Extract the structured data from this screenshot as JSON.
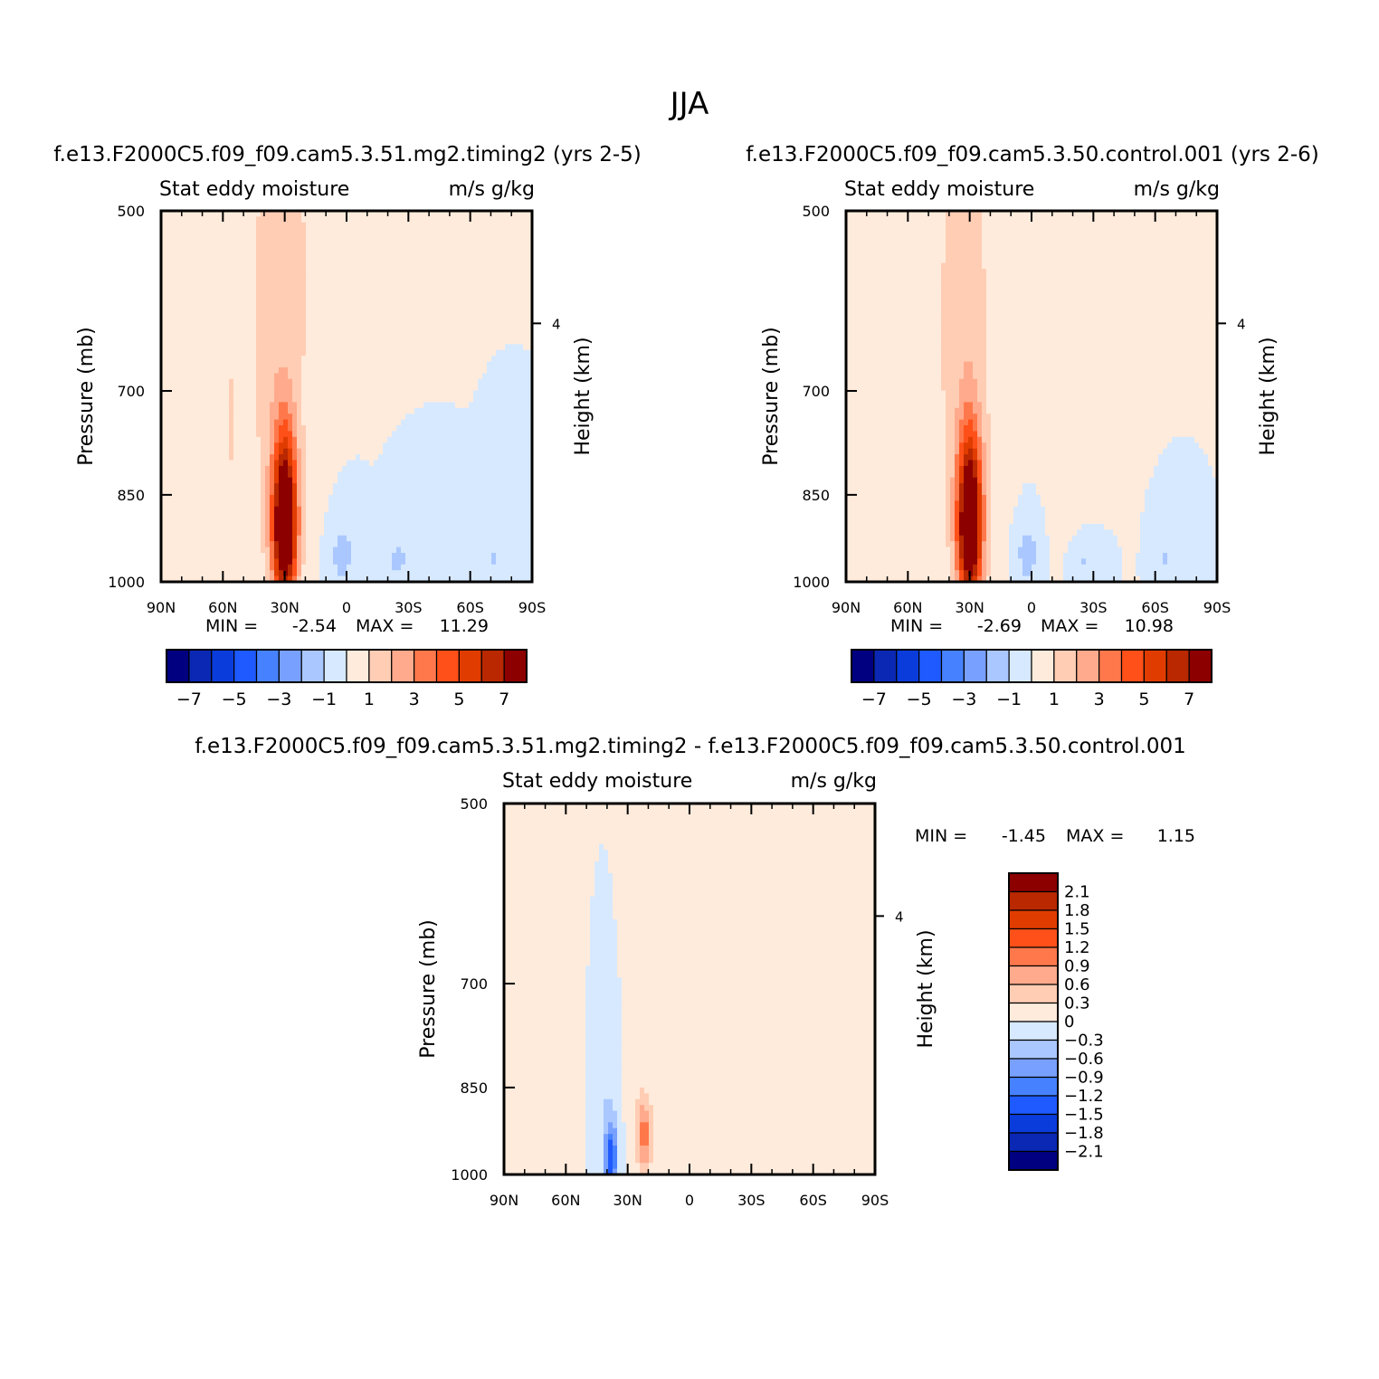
{
  "title": "JJA",
  "colors": {
    "panel_scale": [
      "#000080",
      "#0a28b4",
      "#0a3cdc",
      "#1e5aff",
      "#4682ff",
      "#78a0ff",
      "#aac8ff",
      "#d7e9ff",
      "#ffebdc",
      "#ffcdb4",
      "#ffaa8c",
      "#ff784b",
      "#ff5019",
      "#e13c00",
      "#b92800",
      "#8c0000"
    ],
    "diff_scale": [
      "#000080",
      "#0a28b4",
      "#0a3cdc",
      "#1e5aff",
      "#4682ff",
      "#78a0ff",
      "#aac8ff",
      "#d7e9ff",
      "#ffebdc",
      "#ffcdb4",
      "#ffaa8c",
      "#ff784b",
      "#ff5019",
      "#e13c00",
      "#b92800",
      "#8c0000"
    ]
  },
  "chart_data": [
    {
      "type": "contour",
      "header": "f.e13.F2000C5.f09_f09.cam5.3.51.mg2.timing2 (yrs 2-5)",
      "label_left": "Stat eddy moisture",
      "label_right": "m/s g/kg",
      "xlabel": "",
      "ylabel": "Pressure (mb)",
      "ylabel_right": "Height (km)",
      "x_ticks": [
        "90N",
        "60N",
        "30N",
        "0",
        "30S",
        "60S",
        "90S"
      ],
      "x_range": [
        90,
        -90
      ],
      "y_ticks": [
        "500",
        "700",
        "850",
        "1000"
      ],
      "y_range": [
        500,
        1000
      ],
      "y_log": true,
      "y_right_ticks": [
        "4"
      ],
      "min_label": "MIN =",
      "min_value": "-2.54",
      "max_label": "MAX =",
      "max_value": "11.29",
      "colorbar_labels": [
        "-7",
        "-5",
        "-3",
        "-1",
        "1",
        "3",
        "5",
        "7"
      ],
      "features": [
        {
          "lat": 35,
          "lev": 620,
          "half_lat": 14,
          "half_lev": 380,
          "amp": 1.5
        },
        {
          "lat": 30,
          "lev": 900,
          "half_lat": 6,
          "half_lev": 140,
          "amp": 10.0
        },
        {
          "lat": 56,
          "lev": 750,
          "half_lat": 3,
          "half_lev": 260,
          "amp": 0.9
        },
        {
          "lat": 18,
          "lev": 560,
          "half_lat": 8,
          "half_lev": 200,
          "amp": 0.6
        },
        {
          "lat": 2,
          "lev": 950,
          "half_lat": 6,
          "half_lev": 60,
          "amp": -1.5
        },
        {
          "lat": -25,
          "lev": 960,
          "half_lat": 7,
          "half_lev": 50,
          "amp": -1.2
        },
        {
          "lat": -72,
          "lev": 960,
          "half_lat": 4,
          "half_lev": 40,
          "amp": -1.1
        }
      ]
    },
    {
      "type": "contour",
      "header": "f.e13.F2000C5.f09_f09.cam5.3.50.control.001 (yrs 2-6)",
      "label_left": "Stat eddy moisture",
      "label_right": "m/s g/kg",
      "xlabel": "",
      "ylabel": "Pressure (mb)",
      "ylabel_right": "Height (km)",
      "x_ticks": [
        "90N",
        "60N",
        "30N",
        "0",
        "30S",
        "60S",
        "90S"
      ],
      "x_range": [
        90,
        -90
      ],
      "y_ticks": [
        "500",
        "700",
        "850",
        "1000"
      ],
      "y_range": [
        500,
        1000
      ],
      "y_log": true,
      "y_right_ticks": [
        "4"
      ],
      "min_label": "MIN =",
      "min_value": "-2.69",
      "max_label": "MAX =",
      "max_value": "10.98",
      "colorbar_labels": [
        "-7",
        "-5",
        "-3",
        "-1",
        "1",
        "3",
        "5",
        "7"
      ],
      "features": [
        {
          "lat": 33,
          "lev": 620,
          "half_lat": 16,
          "half_lev": 380,
          "amp": 1.5
        },
        {
          "lat": 30,
          "lev": 900,
          "half_lat": 6,
          "half_lev": 140,
          "amp": 9.8
        },
        {
          "lat": 74,
          "lev": 800,
          "half_lat": 6,
          "half_lev": 220,
          "amp": 0.7
        },
        {
          "lat": -20,
          "lev": 700,
          "half_lat": 10,
          "half_lev": 250,
          "amp": 0.7
        },
        {
          "lat": 2,
          "lev": 950,
          "half_lat": 6,
          "half_lev": 60,
          "amp": -1.5
        },
        {
          "lat": -25,
          "lev": 960,
          "half_lat": 7,
          "half_lev": 50,
          "amp": -1.2
        },
        {
          "lat": -65,
          "lev": 960,
          "half_lat": 4,
          "half_lev": 40,
          "amp": -1.1
        }
      ]
    },
    {
      "type": "contour",
      "header": "f.e13.F2000C5.f09_f09.cam5.3.51.mg2.timing2 - f.e13.F2000C5.f09_f09.cam5.3.50.control.001",
      "label_left": "Stat eddy moisture",
      "label_right": "m/s g/kg",
      "xlabel": "",
      "ylabel": "Pressure (mb)",
      "ylabel_right": "Height (km)",
      "x_ticks": [
        "90N",
        "60N",
        "30N",
        "0",
        "30S",
        "60S",
        "90S"
      ],
      "x_range": [
        90,
        -90
      ],
      "y_ticks": [
        "500",
        "700",
        "850",
        "1000"
      ],
      "y_range": [
        500,
        1000
      ],
      "y_log": true,
      "y_right_ticks": [
        "4"
      ],
      "min_label": "MIN =",
      "min_value": "-1.45",
      "max_label": "MAX =",
      "max_value": "1.15",
      "colorbar_labels": [
        "2.1",
        "1.8",
        "1.5",
        "1.2",
        "0.9",
        "0.6",
        "0.3",
        "0",
        "-0.3",
        "-0.6",
        "-0.9",
        "-1.2",
        "-1.5",
        "-1.8",
        "-2.1"
      ],
      "features": [
        {
          "lat": 60,
          "lev": 750,
          "half_lat": 20,
          "half_lev": 250,
          "amp": 0.12
        },
        {
          "lat": 22,
          "lev": 650,
          "half_lat": 13,
          "half_lev": 350,
          "amp": 0.15
        },
        {
          "lat": 42,
          "lev": 820,
          "half_lat": 8,
          "half_lev": 190,
          "amp": -0.35
        },
        {
          "lat": 38,
          "lev": 970,
          "half_lat": 3,
          "half_lev": 60,
          "amp": -1.4
        },
        {
          "lat": 22,
          "lev": 930,
          "half_lat": 4,
          "half_lev": 60,
          "amp": 1.0
        },
        {
          "lat": 10,
          "lev": 920,
          "half_lat": 3,
          "half_lev": 80,
          "amp": 0.25
        },
        {
          "lat": -12,
          "lev": 880,
          "half_lat": 3,
          "half_lev": 60,
          "amp": 0.3
        },
        {
          "lat": -42,
          "lev": 780,
          "half_lat": 2,
          "half_lev": 110,
          "amp": 0.12
        },
        {
          "lat": -75,
          "lev": 620,
          "half_lat": 2,
          "half_lev": 180,
          "amp": 0.12
        }
      ]
    }
  ]
}
